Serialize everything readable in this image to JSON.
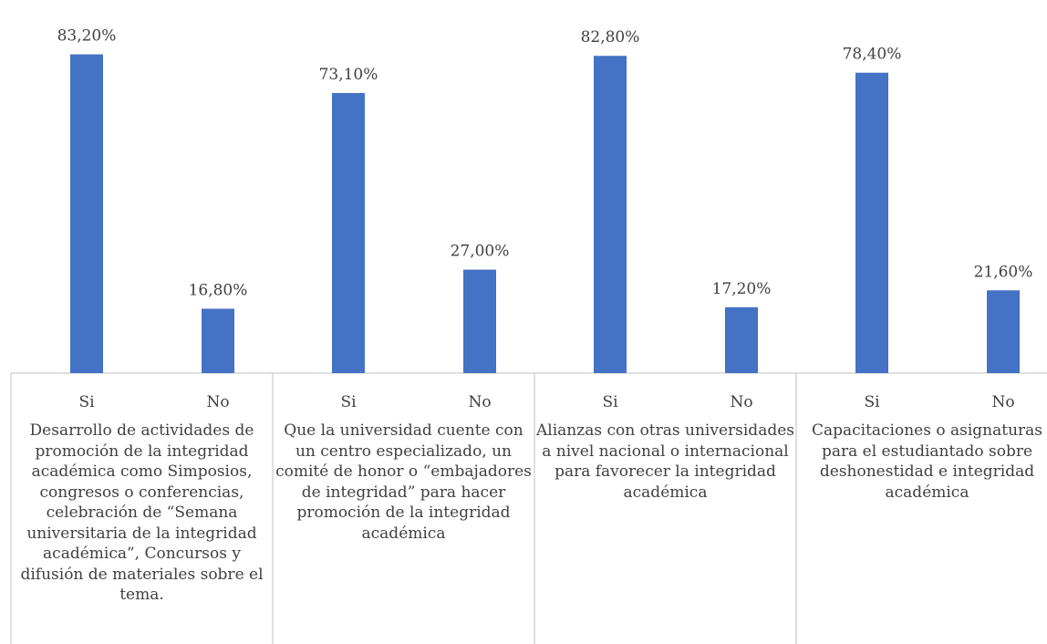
{
  "chart_data": {
    "type": "bar",
    "title": "",
    "xlabel": "",
    "ylabel": "",
    "ylim": [
      0,
      90
    ],
    "grid": false,
    "legend": "none",
    "bar_color": "#4472C4",
    "axis_color": "#BFBFBF",
    "text_color": "#404040",
    "groups": [
      {
        "label": "Desarrollo de actividades de promoción de la integridad académica como Simposios, congresos o conferencias, celebración de “Semana universitaria de la integridad académica”, Concursos y difusión de materiales sobre el tema.",
        "bars": [
          {
            "category": "Si",
            "value": 83.2,
            "label": "83,20%"
          },
          {
            "category": "No",
            "value": 16.8,
            "label": "16,80%"
          }
        ]
      },
      {
        "label": "Que la universidad cuente con un centro especializado, un comité de honor o “embajadores de integridad” para hacer promoción de la integridad académica",
        "bars": [
          {
            "category": "Si",
            "value": 73.1,
            "label": "73,10%"
          },
          {
            "category": "No",
            "value": 27.0,
            "label": "27,00%"
          }
        ]
      },
      {
        "label": "Alianzas con otras universidades a nivel nacional o internacional para favorecer la integridad académica",
        "bars": [
          {
            "category": "Si",
            "value": 82.8,
            "label": "82,80%"
          },
          {
            "category": "No",
            "value": 17.2,
            "label": "17,20%"
          }
        ]
      },
      {
        "label": "Capacitaciones o asignaturas para el estudiantado sobre deshonestidad e integridad académica",
        "bars": [
          {
            "category": "Si",
            "value": 78.4,
            "label": "78,40%"
          },
          {
            "category": "No",
            "value": 21.6,
            "label": "21,60%"
          }
        ]
      }
    ]
  }
}
